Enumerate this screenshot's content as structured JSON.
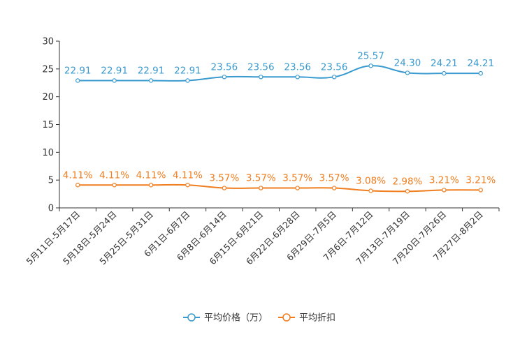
{
  "chart_data": {
    "type": "line",
    "title": "",
    "xlabel": "",
    "ylabel": "",
    "ylim": [
      0,
      30
    ],
    "yticks": [
      0,
      5,
      10,
      15,
      20,
      25,
      30
    ],
    "categories": [
      "5月11日-5月17日",
      "5月18日-5月24日",
      "5月25日-5月31日",
      "6月1日-6月7日",
      "6月8日-6月14日",
      "6月15日-6月21日",
      "6月22日-6月28日",
      "6月29日-7月5日",
      "7月6日-7月12日",
      "7月13日-7月19日",
      "7月20日-7月26日",
      "7月27日-8月2日"
    ],
    "series": [
      {
        "name": "平均价格（万）",
        "color": "#3a9bd0",
        "values": [
          22.91,
          22.91,
          22.91,
          22.91,
          23.56,
          23.56,
          23.56,
          23.56,
          25.57,
          24.3,
          24.21,
          24.21
        ],
        "labels": [
          "22.91",
          "22.91",
          "22.91",
          "22.91",
          "23.56",
          "23.56",
          "23.56",
          "23.56",
          "25.57",
          "24.30",
          "24.21",
          "24.21"
        ]
      },
      {
        "name": "平均折扣",
        "color": "#f07d1e",
        "values": [
          4.11,
          4.11,
          4.11,
          4.11,
          3.57,
          3.57,
          3.57,
          3.57,
          3.08,
          2.98,
          3.21,
          3.21
        ],
        "labels": [
          "4.11%",
          "4.11%",
          "4.11%",
          "4.11%",
          "3.57%",
          "3.57%",
          "3.57%",
          "3.57%",
          "3.08%",
          "2.98%",
          "3.21%",
          "3.21%"
        ]
      }
    ],
    "legend_position": "bottom-center",
    "grid": false
  }
}
